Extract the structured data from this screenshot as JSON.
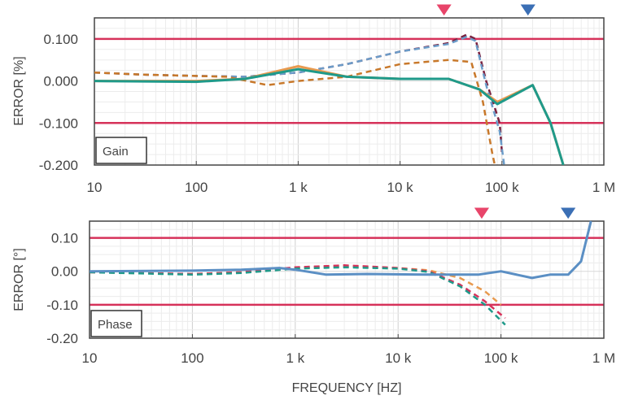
{
  "chart_data": [
    {
      "type": "line",
      "ylabel": "ERROR [%]",
      "label_box": "Gain",
      "xscale": "log",
      "xlim": [
        10,
        1000000
      ],
      "ylim": [
        -0.2,
        0.15
      ],
      "yticks": [
        "0.100",
        "0.000",
        "-0.100",
        "-0.200"
      ],
      "ytick_values": [
        0.1,
        0,
        -0.1,
        -0.2
      ],
      "xticks": [
        "10",
        "100",
        "1 k",
        "10 k",
        "100 k",
        "1 M"
      ],
      "xtick_values": [
        10,
        100,
        1000,
        10000,
        100000,
        1000000
      ],
      "limit_lines": [
        0.1,
        -0.1
      ],
      "grid": true,
      "markers": [
        {
          "x": 27000,
          "color": "#e8456a"
        },
        {
          "x": 180000,
          "color": "#3b6fb5"
        }
      ],
      "series": [
        {
          "color": "#7a1f3d",
          "dash": true,
          "x": [
            10,
            30,
            100,
            300,
            1000,
            3000,
            10000,
            30000,
            45000,
            55000,
            70000,
            95000,
            100000
          ],
          "y": [
            0.02,
            0.015,
            0.012,
            0.01,
            0.02,
            0.04,
            0.07,
            0.09,
            0.11,
            0.1,
            0.0,
            -0.1,
            -0.17
          ]
        },
        {
          "color": "#6b9cc9",
          "dash": true,
          "x": [
            10,
            30,
            100,
            300,
            1000,
            3000,
            10000,
            30000,
            45000,
            55000,
            70000,
            95000,
            105000
          ],
          "y": [
            0.02,
            0.015,
            0.012,
            0.01,
            0.02,
            0.04,
            0.07,
            0.088,
            0.105,
            0.095,
            -0.01,
            -0.12,
            -0.2
          ]
        },
        {
          "color": "#c8782a",
          "dash": true,
          "x": [
            10,
            30,
            100,
            200,
            500,
            1000,
            3000,
            10000,
            30000,
            50000,
            65000,
            80000,
            85000
          ],
          "y": [
            0.02,
            0.015,
            0.012,
            0.01,
            -0.01,
            0.0,
            0.01,
            0.04,
            0.05,
            0.045,
            -0.05,
            -0.17,
            -0.2
          ]
        },
        {
          "color": "#e89a4f",
          "dash": false,
          "x": [
            10,
            100,
            300,
            1000,
            3000,
            10000,
            30000,
            60000,
            90000,
            200000,
            300000,
            400000
          ],
          "y": [
            0,
            0,
            0.005,
            0.035,
            0.01,
            0.005,
            0.005,
            -0.02,
            -0.05,
            -0.01,
            -0.1,
            -0.2
          ]
        },
        {
          "color": "#1f9a8a",
          "dash": false,
          "x": [
            10,
            100,
            300,
            1000,
            3000,
            10000,
            30000,
            60000,
            90000,
            200000,
            300000,
            400000
          ],
          "y": [
            0,
            -0.002,
            0.005,
            0.028,
            0.01,
            0.005,
            0.005,
            -0.02,
            -0.055,
            -0.01,
            -0.1,
            -0.2
          ]
        }
      ]
    },
    {
      "type": "line",
      "ylabel": "ERROR [°]",
      "xlabel": "FREQUENCY [HZ]",
      "label_box": "Phase",
      "xscale": "log",
      "xlim": [
        10,
        1000000
      ],
      "ylim": [
        -0.2,
        0.15
      ],
      "yticks": [
        "0.10",
        "0.00",
        "-0.10",
        "-0.20"
      ],
      "ytick_values": [
        0.1,
        0,
        -0.1,
        -0.2
      ],
      "xticks": [
        "10",
        "100",
        "1 k",
        "10 k",
        "100 k",
        "1 M"
      ],
      "xtick_values": [
        10,
        100,
        1000,
        10000,
        100000,
        1000000
      ],
      "limit_lines": [
        0.1,
        -0.1
      ],
      "grid": true,
      "markers": [
        {
          "x": 65000,
          "color": "#e8456a"
        },
        {
          "x": 450000,
          "color": "#3b6fb5"
        }
      ],
      "series": [
        {
          "color": "#e89a4f",
          "dash": true,
          "x": [
            10,
            100,
            300,
            1000,
            3000,
            10000,
            20000,
            40000,
            70000,
            100000
          ],
          "y": [
            -0.003,
            -0.008,
            -0.003,
            0.01,
            0.015,
            0.01,
            0.003,
            -0.02,
            -0.06,
            -0.1
          ]
        },
        {
          "color": "#d6325a",
          "dash": true,
          "x": [
            10,
            100,
            300,
            1000,
            3000,
            10000,
            20000,
            40000,
            70000,
            110000
          ],
          "y": [
            -0.003,
            -0.008,
            -0.003,
            0.012,
            0.018,
            0.01,
            0.0,
            -0.04,
            -0.09,
            -0.14
          ]
        },
        {
          "color": "#1f9a8a",
          "dash": true,
          "x": [
            10,
            100,
            300,
            1000,
            3000,
            10000,
            20000,
            40000,
            70000,
            110000
          ],
          "y": [
            -0.003,
            -0.01,
            -0.005,
            0.008,
            0.012,
            0.008,
            -0.002,
            -0.045,
            -0.1,
            -0.16
          ]
        },
        {
          "color": "#5b8fc4",
          "dash": false,
          "x": [
            10,
            100,
            300,
            700,
            1000,
            2000,
            5000,
            20000,
            60000,
            100000,
            200000,
            300000,
            450000,
            600000,
            750000
          ],
          "y": [
            0,
            0.002,
            0.005,
            0.01,
            0.005,
            -0.01,
            -0.008,
            -0.01,
            -0.01,
            0.0,
            -0.02,
            -0.01,
            -0.01,
            0.03,
            0.15
          ]
        }
      ]
    }
  ]
}
